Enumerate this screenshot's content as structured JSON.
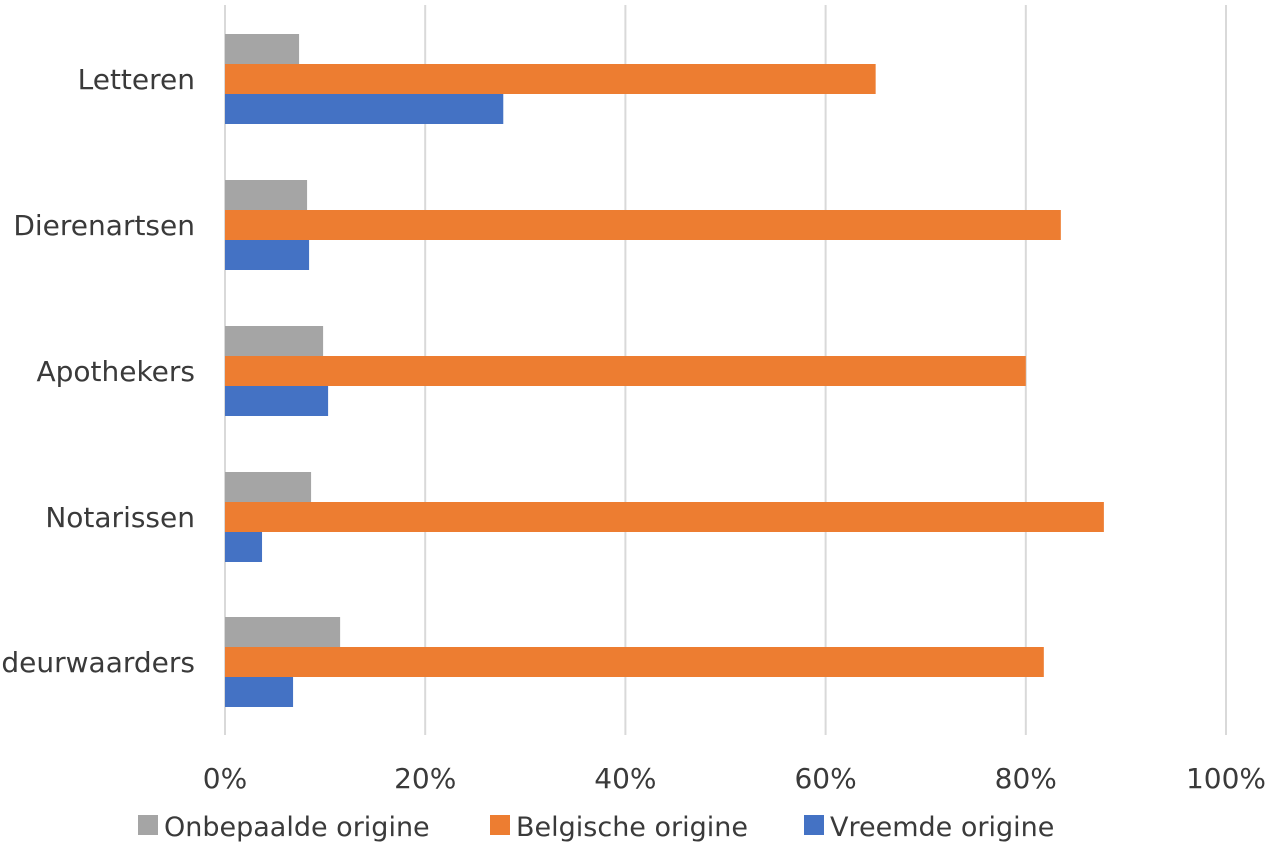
{
  "chart_data": {
    "type": "bar",
    "orientation": "horizontal",
    "categories": [
      "Letteren",
      "Dierenartsen",
      "Apothekers",
      "Notarissen",
      "Gerechtsdeurwaarders"
    ],
    "series": [
      {
        "name": "Onbepaalde origine",
        "color": "#a5a5a5",
        "values": [
          7.4,
          8.2,
          9.8,
          8.6,
          11.5
        ]
      },
      {
        "name": "Belgische origine",
        "color": "#ed7d31",
        "values": [
          65,
          83.5,
          80,
          87.8,
          81.8
        ]
      },
      {
        "name": "Vreemde origine",
        "color": "#4472c4",
        "values": [
          27.8,
          8.4,
          10.3,
          3.7,
          6.8
        ]
      }
    ],
    "x_ticks": [
      "0%",
      "20%",
      "40%",
      "60%",
      "80%",
      "100%"
    ],
    "xlim": [
      0,
      100
    ],
    "grid": true,
    "legend_position": "bottom"
  }
}
